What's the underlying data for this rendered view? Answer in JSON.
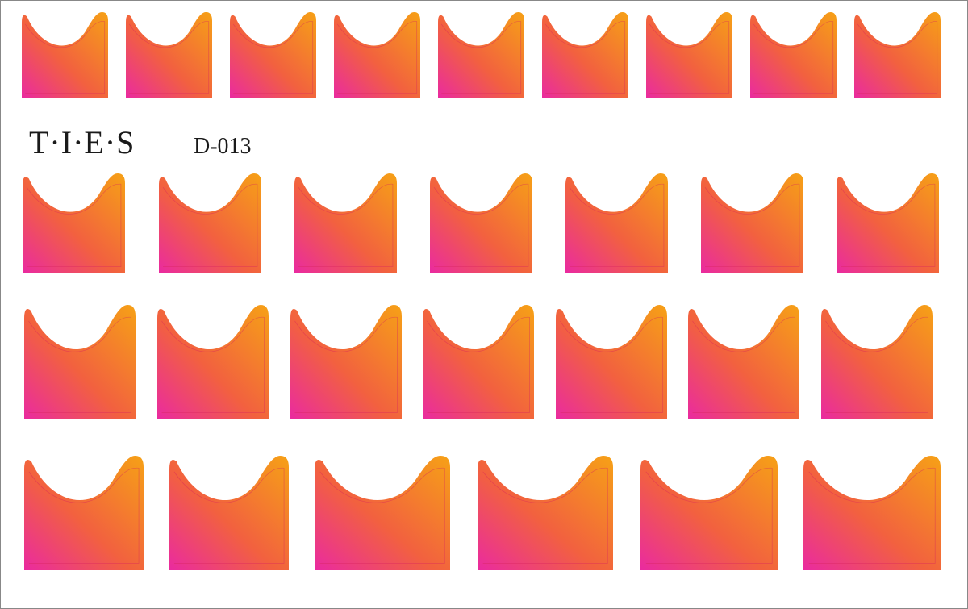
{
  "brand": "T·I·E·S",
  "code": "D-013"
}
